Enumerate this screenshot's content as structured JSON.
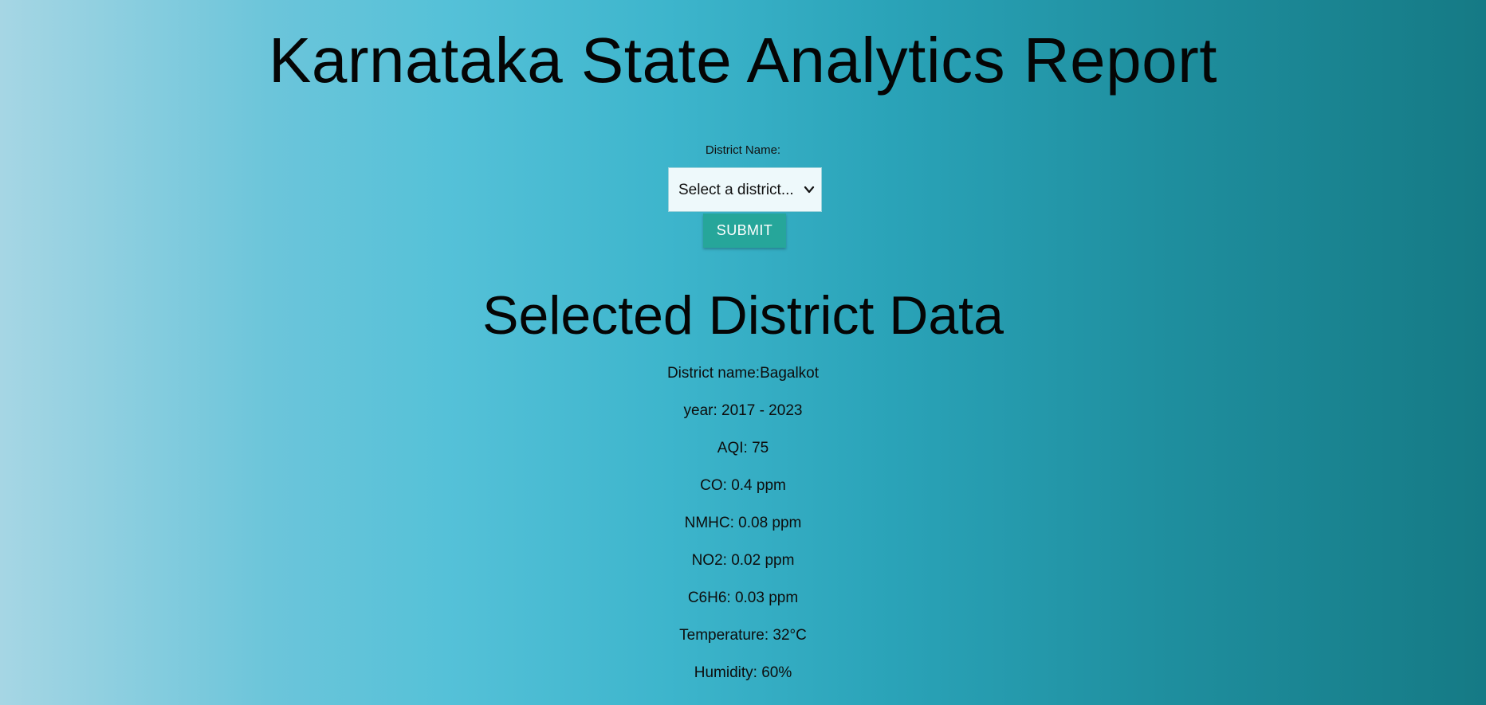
{
  "page": {
    "title": "Karnataka State Analytics Report"
  },
  "form": {
    "label": "District Name:",
    "select_value": "Select a district...",
    "submit_label": "SUBMIT"
  },
  "selected": {
    "title": "Selected District Data",
    "rows": [
      "District name:Bagalkot",
      "year: 2017 - 2023",
      "AQI: 75",
      "CO: 0.4 ppm",
      "NMHC: 0.08 ppm",
      "NO2: 0.02 ppm",
      "C6H6: 0.03 ppm",
      "Temperature: 32°C",
      "Humidity: 60%"
    ]
  },
  "colors": {
    "submit_button": "#26a69a",
    "background_left": "#a6d6e4",
    "background_right": "#157a85"
  }
}
